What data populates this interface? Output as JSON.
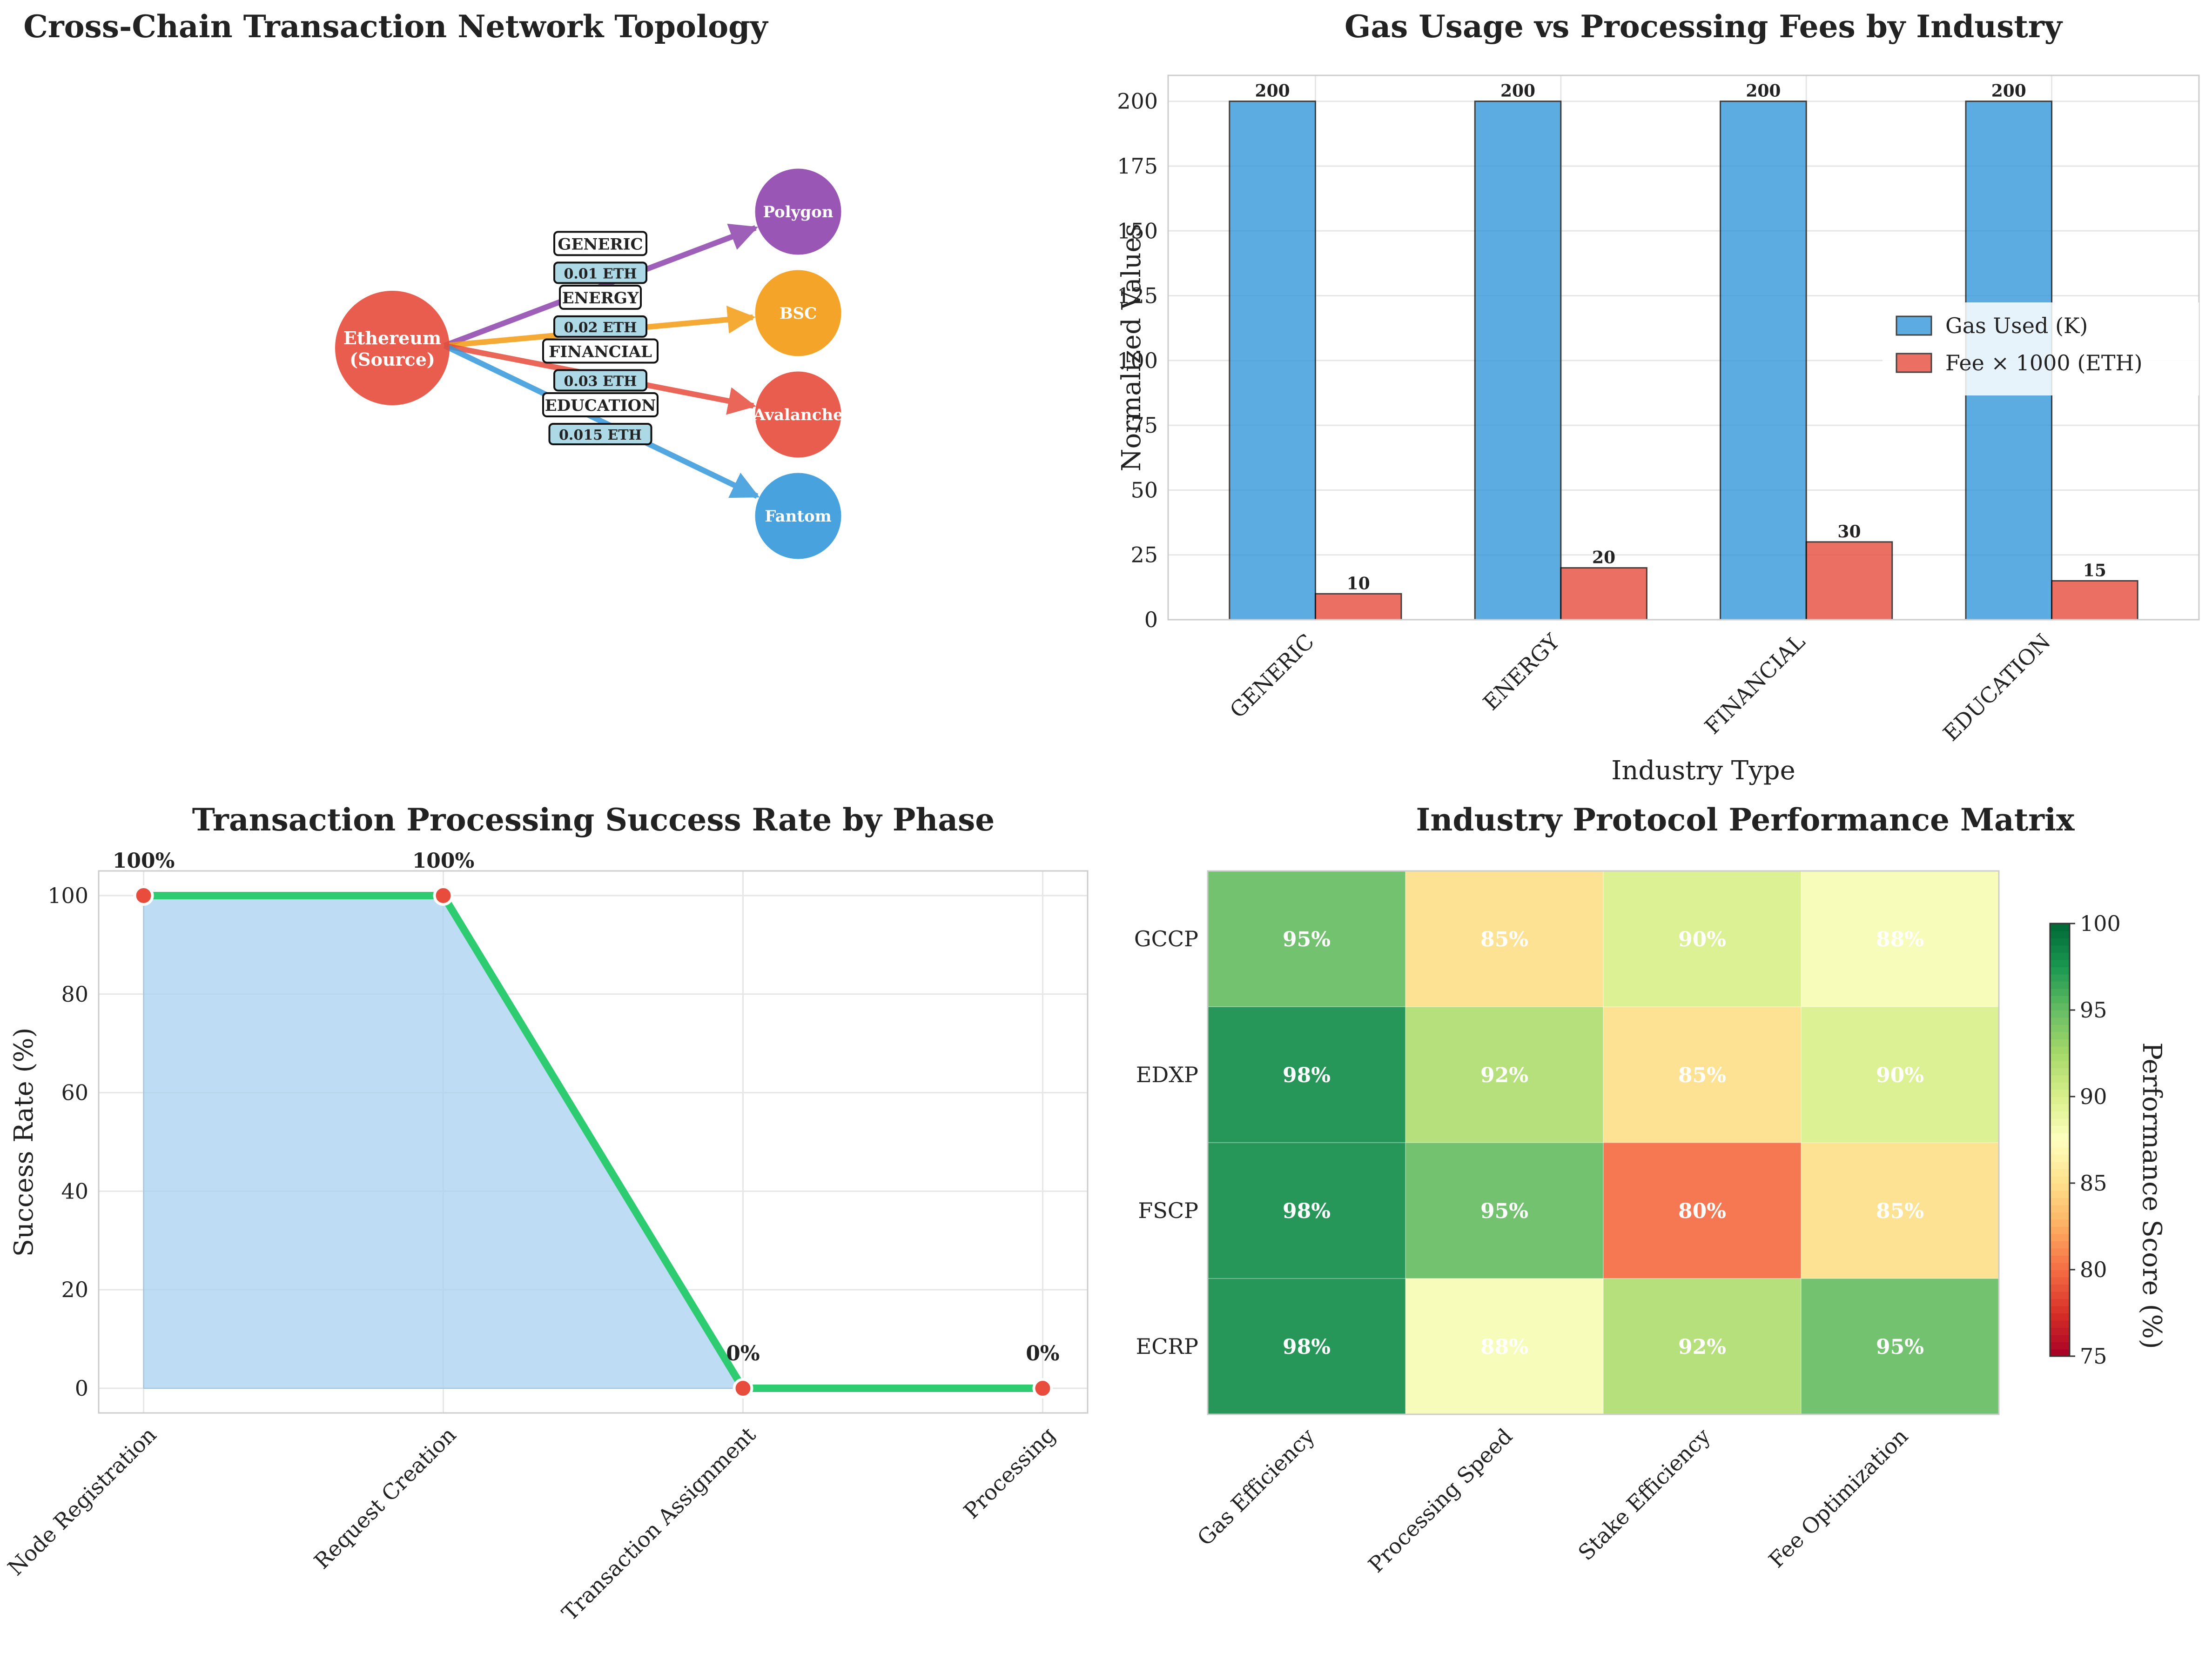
{
  "chart_data": [
    {
      "type": "network",
      "title": "Cross-Chain Transaction Network Topology",
      "source": {
        "label_line1": "Ethereum",
        "label_line2": "(Source)",
        "color": "#e74c3c"
      },
      "targets": [
        {
          "name": "Polygon",
          "color": "#8e44ad",
          "edge_label": "GENERIC",
          "fee_label": "0.01 ETH"
        },
        {
          "name": "BSC",
          "color": "#f39c12",
          "edge_label": "ENERGY",
          "fee_label": "0.02 ETH"
        },
        {
          "name": "Avalanche",
          "color": "#e74c3c",
          "edge_label": "FINANCIAL",
          "fee_label": "0.03 ETH"
        },
        {
          "name": "Fantom",
          "color": "#3498db",
          "edge_label": "EDUCATION",
          "fee_label": "0.015 ETH"
        }
      ]
    },
    {
      "type": "bar",
      "title": "Gas Usage vs Processing Fees by Industry",
      "xlabel": "Industry Type",
      "ylabel": "Normalized Values",
      "categories": [
        "GENERIC",
        "ENERGY",
        "FINANCIAL",
        "EDUCATION"
      ],
      "series": [
        {
          "name": "Gas Used (K)",
          "color": "#3498db",
          "values": [
            200,
            200,
            200,
            200
          ]
        },
        {
          "name": "Fee × 1000 (ETH)",
          "color": "#e74c3c",
          "values": [
            10,
            20,
            30,
            15
          ]
        }
      ],
      "ylim": [
        0,
        210
      ],
      "yticks": [
        0,
        25,
        50,
        75,
        100,
        125,
        150,
        175,
        200
      ],
      "legend": "center-right",
      "grid": true
    },
    {
      "type": "line",
      "title": "Transaction Processing Success Rate by Phase",
      "ylabel": "Success Rate (%)",
      "categories": [
        "Node Registration",
        "Request Creation",
        "Transaction Assignment",
        "Processing"
      ],
      "values": [
        100,
        100,
        0,
        0
      ],
      "value_labels": [
        "100%",
        "100%",
        "0%",
        "0%"
      ],
      "ylim": [
        -5,
        105
      ],
      "yticks": [
        0,
        20,
        40,
        60,
        80,
        100
      ],
      "line_color": "#2ecc71",
      "fill_color": "#a9d1ef",
      "point_color": "#e74c3c",
      "grid": true
    },
    {
      "type": "heatmap",
      "title": "Industry Protocol Performance Matrix",
      "rows": [
        "GCCP",
        "EDXP",
        "FSCP",
        "ECRP"
      ],
      "columns": [
        "Gas Efficiency",
        "Processing Speed",
        "Stake Efficiency",
        "Fee Optimization"
      ],
      "values": [
        [
          95,
          85,
          90,
          88
        ],
        [
          98,
          92,
          85,
          90
        ],
        [
          98,
          95,
          80,
          85
        ],
        [
          98,
          88,
          92,
          95
        ]
      ],
      "colorbar": {
        "label": "Performance Score (%)",
        "range": [
          75,
          100
        ],
        "ticks": [
          75,
          80,
          85,
          90,
          95,
          100
        ],
        "colormap": "RdYlGn"
      }
    }
  ]
}
